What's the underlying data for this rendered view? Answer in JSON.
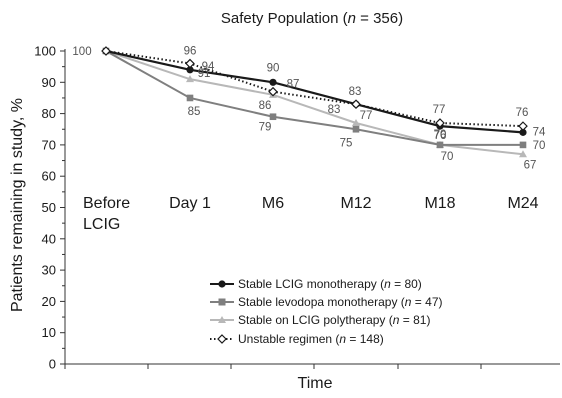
{
  "chart_data": {
    "type": "line",
    "title": "Safety Population (n = 356)",
    "title_parts": {
      "prefix": "Safety Population (",
      "italic": "n",
      "suffix": " = 356)"
    },
    "xlabel": "Time",
    "ylabel": "Patients remaining in study, %",
    "ylim": [
      0,
      100
    ],
    "ytick_step": 10,
    "yticks": [
      "0",
      "10",
      "20",
      "30",
      "40",
      "50",
      "60",
      "70",
      "80",
      "90",
      "100"
    ],
    "categories": [
      "Before LCIG",
      "Day 1",
      "M6",
      "M12",
      "M18",
      "M24"
    ],
    "grid": false,
    "legend_position": "bottom-center",
    "series": [
      {
        "name": "Stable LCIG monotherapy (n = 80)",
        "name_parts": {
          "prefix": "Stable LCIG monotherapy  (",
          "italic": "n",
          "suffix": " = 80)"
        },
        "values": [
          100,
          94,
          90,
          83,
          76,
          74
        ],
        "color": "#1a1a1a",
        "marker": "circle",
        "dash": "solid",
        "labels": [
          "",
          "",
          "90",
          "",
          "",
          "74"
        ]
      },
      {
        "name": "Stable levodopa monotherapy (n = 47)",
        "name_parts": {
          "prefix": "Stable levodopa monotherapy  (",
          "italic": "n",
          "suffix": " = 47)"
        },
        "values": [
          100,
          85,
          79,
          75,
          70,
          70
        ],
        "color": "#7f7f7f",
        "marker": "square",
        "dash": "solid",
        "labels": [
          "100",
          "85",
          "79",
          "75",
          "70",
          "70"
        ]
      },
      {
        "name": "Stable on LCIG polytherapy (n = 81)",
        "name_parts": {
          "prefix": "Stable on LCIG polytherapy  (",
          "italic": "n",
          "suffix": " = 81)"
        },
        "values": [
          100,
          91,
          86,
          77,
          70,
          67
        ],
        "color": "#b8b8b8",
        "marker": "triangle",
        "dash": "solid",
        "labels": [
          "",
          "91",
          "86",
          "77",
          "",
          "67"
        ]
      },
      {
        "name": "Unstable regimen (n = 148)",
        "name_parts": {
          "prefix": "Unstable regimen  (",
          "italic": "n",
          "suffix": " = 148)"
        },
        "values": [
          100,
          96,
          87,
          83,
          77,
          76
        ],
        "color": "#1a1a1a",
        "marker": "diamond",
        "dash": "dotted",
        "labels": [
          "",
          "96",
          "87",
          "83",
          "77",
          "76"
        ]
      }
    ],
    "extra_labels": [
      "94",
      "83",
      "70",
      "76"
    ]
  }
}
